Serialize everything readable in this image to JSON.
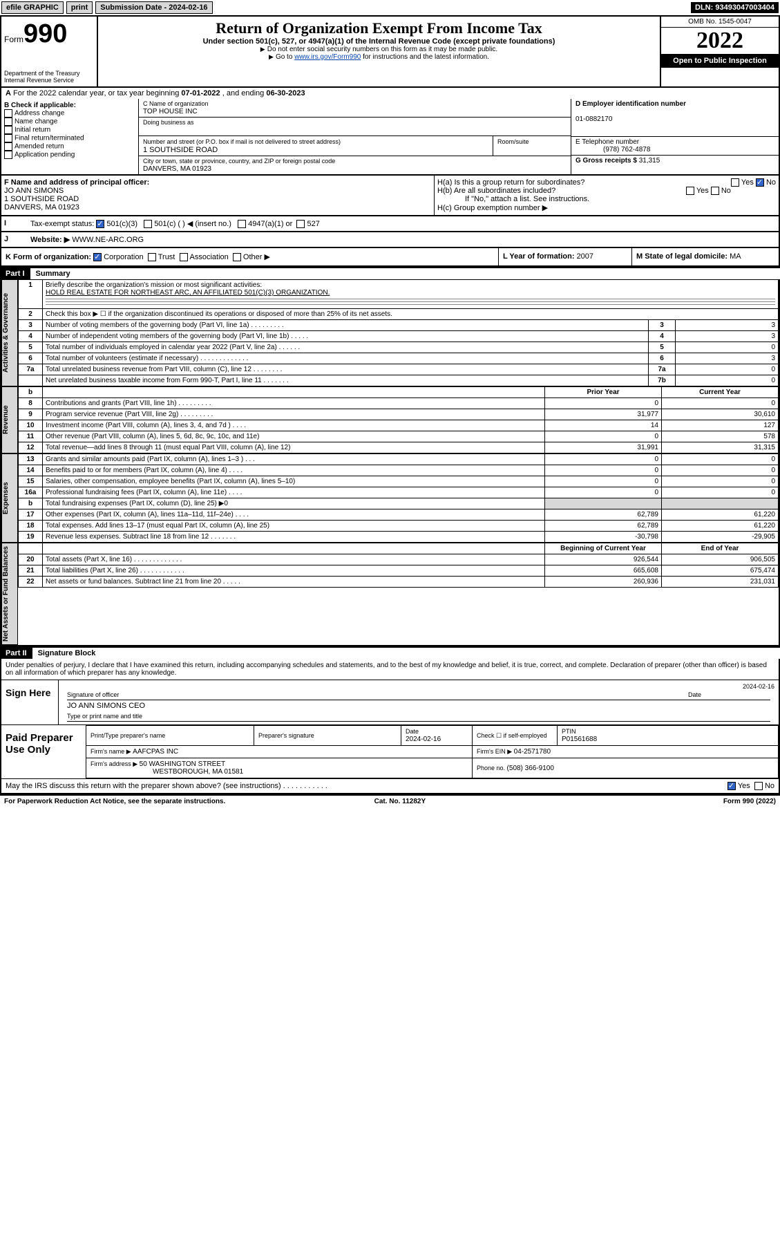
{
  "topbar": {
    "efile": "efile GRAPHIC",
    "print": "print",
    "subdate_lbl": "Submission Date - ",
    "subdate": "2024-02-16",
    "dln_lbl": "DLN: ",
    "dln": "93493047003404"
  },
  "header": {
    "form_word": "Form",
    "form_no": "990",
    "dept": "Department of the Treasury",
    "irs": "Internal Revenue Service",
    "title": "Return of Organization Exempt From Income Tax",
    "sub1": "Under section 501(c), 527, or 4947(a)(1) of the Internal Revenue Code (except private foundations)",
    "sub2": "Do not enter social security numbers on this form as it may be made public.",
    "sub3a": "Go to ",
    "sub3link": "www.irs.gov/Form990",
    "sub3b": " for instructions and the latest information.",
    "omb": "OMB No. 1545-0047",
    "year": "2022",
    "inspect": "Open to Public Inspection"
  },
  "rowA": {
    "text": "For the 2022 calendar year, or tax year beginning ",
    "d1": "07-01-2022",
    "mid": " , and ending ",
    "d2": "06-30-2023",
    "lead": "A"
  },
  "boxB": {
    "hdr": "B Check if applicable:",
    "items": [
      "Address change",
      "Name change",
      "Initial return",
      "Final return/terminated",
      "Amended return",
      "Application pending"
    ]
  },
  "boxC": {
    "name_lbl": "C Name of organization",
    "name": "TOP HOUSE INC",
    "dba_lbl": "Doing business as",
    "dba": "",
    "addr_lbl": "Number and street (or P.O. box if mail is not delivered to street address)",
    "room_lbl": "Room/suite",
    "addr": "1 SOUTHSIDE ROAD",
    "city_lbl": "City or town, state or province, country, and ZIP or foreign postal code",
    "city": "DANVERS, MA  01923"
  },
  "boxD": {
    "lbl": "D Employer identification number",
    "ein": "01-0882170"
  },
  "boxE": {
    "lbl": "E Telephone number",
    "tel": "(978) 762-4878"
  },
  "boxG": {
    "lbl": "G Gross receipts $ ",
    "val": "31,315"
  },
  "boxF": {
    "lbl": "F Name and address of principal officer:",
    "name": "JO ANN SIMONS",
    "addr1": "1 SOUTHSIDE ROAD",
    "addr2": "DANVERS, MA  01923"
  },
  "boxH": {
    "a": "H(a)  Is this a group return for subordinates?",
    "b": "H(b)  Are all subordinates included?",
    "bnote": "If \"No,\" attach a list. See instructions.",
    "c": "H(c)  Group exemption number ▶",
    "yes": "Yes",
    "no": "No"
  },
  "boxI": {
    "lbl": "Tax-exempt status:",
    "o1": "501(c)(3)",
    "o2": "501(c) (  ) ◀ (insert no.)",
    "o3": "4947(a)(1) or",
    "o4": "527",
    "lead": "I"
  },
  "boxJ": {
    "lbl": "Website: ▶",
    "val": "WWW.NE-ARC.ORG",
    "lead": "J"
  },
  "boxK": {
    "lbl": "K Form of organization:",
    "o1": "Corporation",
    "o2": "Trust",
    "o3": "Association",
    "o4": "Other ▶"
  },
  "boxL": {
    "lbl": "L Year of formation: ",
    "val": "2007"
  },
  "boxM": {
    "lbl": "M State of legal domicile: ",
    "val": "MA"
  },
  "part1": {
    "hdr": "Part I",
    "title": "Summary"
  },
  "mission": {
    "lbl": "Briefly describe the organization's mission or most significant activities:",
    "text": "HOLD REAL ESTATE FOR NORTHEAST ARC, AN AFFILIATED 501(C)(3) ORGANIZATION."
  },
  "line2": "Check this box ▶ ☐  if the organization discontinued its operations or disposed of more than 25% of its net assets.",
  "gov_lines": [
    {
      "n": "3",
      "d": "Number of voting members of the governing body (Part VI, line 1a)  .    .    .    .    .    .    .    .    .",
      "b": "3",
      "v": "3"
    },
    {
      "n": "4",
      "d": "Number of independent voting members of the governing body (Part VI, line 1b)  .    .    .    .    .",
      "b": "4",
      "v": "3"
    },
    {
      "n": "5",
      "d": "Total number of individuals employed in calendar year 2022 (Part V, line 2a)  .    .    .    .    .    .",
      "b": "5",
      "v": "0"
    },
    {
      "n": "6",
      "d": "Total number of volunteers (estimate if necessary)  .    .    .    .    .    .    .    .    .    .    .    .    .",
      "b": "6",
      "v": "3"
    },
    {
      "n": "7a",
      "d": "Total unrelated business revenue from Part VIII, column (C), line 12  .    .    .    .    .    .    .    .",
      "b": "7a",
      "v": "0"
    },
    {
      "n": "",
      "d": "Net unrelated business taxable income from Form 990-T, Part I, line 11  .    .    .    .    .    .    .",
      "b": "7b",
      "v": "0"
    }
  ],
  "rev_hdr": {
    "b": "b",
    "py": "Prior Year",
    "cy": "Current Year"
  },
  "rev_lines": [
    {
      "n": "8",
      "d": "Contributions and grants (Part VIII, line 1h)  .    .    .    .    .    .    .    .    .",
      "py": "0",
      "cy": "0"
    },
    {
      "n": "9",
      "d": "Program service revenue (Part VIII, line 2g)  .    .    .    .    .    .    .    .    .",
      "py": "31,977",
      "cy": "30,610"
    },
    {
      "n": "10",
      "d": "Investment income (Part VIII, column (A), lines 3, 4, and 7d )  .    .    .    .",
      "py": "14",
      "cy": "127"
    },
    {
      "n": "11",
      "d": "Other revenue (Part VIII, column (A), lines 5, 6d, 8c, 9c, 10c, and 11e)",
      "py": "0",
      "cy": "578"
    },
    {
      "n": "12",
      "d": "Total revenue—add lines 8 through 11 (must equal Part VIII, column (A), line 12)",
      "py": "31,991",
      "cy": "31,315"
    }
  ],
  "exp_lines": [
    {
      "n": "13",
      "d": "Grants and similar amounts paid (Part IX, column (A), lines 1–3 )  .    .    .",
      "py": "0",
      "cy": "0"
    },
    {
      "n": "14",
      "d": "Benefits paid to or for members (Part IX, column (A), line 4)  .    .    .    .",
      "py": "0",
      "cy": "0"
    },
    {
      "n": "15",
      "d": "Salaries, other compensation, employee benefits (Part IX, column (A), lines 5–10)",
      "py": "0",
      "cy": "0"
    },
    {
      "n": "16a",
      "d": "Professional fundraising fees (Part IX, column (A), line 11e)  .    .    .    .",
      "py": "0",
      "cy": "0"
    },
    {
      "n": "b",
      "d": "Total fundraising expenses (Part IX, column (D), line 25) ▶0",
      "py": "SHADE",
      "cy": "SHADE"
    },
    {
      "n": "17",
      "d": "Other expenses (Part IX, column (A), lines 11a–11d, 11f–24e)  .    .    .    .",
      "py": "62,789",
      "cy": "61,220"
    },
    {
      "n": "18",
      "d": "Total expenses. Add lines 13–17 (must equal Part IX, column (A), line 25)",
      "py": "62,789",
      "cy": "61,220"
    },
    {
      "n": "19",
      "d": "Revenue less expenses. Subtract line 18 from line 12  .    .    .    .    .    .    .",
      "py": "-30,798",
      "cy": "-29,905"
    }
  ],
  "na_hdr": {
    "py": "Beginning of Current Year",
    "cy": "End of Year"
  },
  "na_lines": [
    {
      "n": "20",
      "d": "Total assets (Part X, line 16)  .    .    .    .    .    .    .    .    .    .    .    .    .",
      "py": "926,544",
      "cy": "906,505"
    },
    {
      "n": "21",
      "d": "Total liabilities (Part X, line 26)  .    .    .    .    .    .    .    .    .    .    .    .",
      "py": "665,608",
      "cy": "675,474"
    },
    {
      "n": "22",
      "d": "Net assets or fund balances. Subtract line 21 from line 20  .    .    .    .    .",
      "py": "260,936",
      "cy": "231,031"
    }
  ],
  "sidelabels": {
    "gov": "Activities & Governance",
    "rev": "Revenue",
    "exp": "Expenses",
    "na": "Net Assets or Fund Balances"
  },
  "part2": {
    "hdr": "Part II",
    "title": "Signature Block"
  },
  "sig": {
    "disclaim": "Under penalties of perjury, I declare that I have examined this return, including accompanying schedules and statements, and to the best of my knowledge and belief, it is true, correct, and complete. Declaration of preparer (other than officer) is based on all information of which preparer has any knowledge.",
    "sign_here": "Sign Here",
    "sig_officer": "Signature of officer",
    "date": "Date",
    "sig_date": "2024-02-16",
    "officer": "JO ANN SIMONS CEO",
    "officer_lbl": "Type or print name and title",
    "paid": "Paid Preparer Use Only",
    "prep_name_lbl": "Print/Type preparer's name",
    "prep_sig_lbl": "Preparer's signature",
    "prep_date_lbl": "Date",
    "prep_date": "2024-02-16",
    "self_lbl": "Check ☐ if self-employed",
    "ptin_lbl": "PTIN",
    "ptin": "P01561688",
    "firm_lbl": "Firm's name  ▶ ",
    "firm": "AAFCPAS INC",
    "ein_lbl": "Firm's EIN ▶ ",
    "ein": "04-2571780",
    "addr_lbl": "Firm's address ▶ ",
    "addr1": "50 WASHINGTON STREET",
    "addr2": "WESTBOROUGH, MA  01581",
    "phone_lbl": "Phone no. ",
    "phone": "(508) 366-9100",
    "may": "May the IRS discuss this return with the preparer shown above? (see instructions)  .    .    .    .    .    .    .    .    .    .    .",
    "yes": "Yes",
    "no": "No"
  },
  "footer": {
    "l": "For Paperwork Reduction Act Notice, see the separate instructions.",
    "c": "Cat. No. 11282Y",
    "r": "Form 990 (2022)"
  }
}
